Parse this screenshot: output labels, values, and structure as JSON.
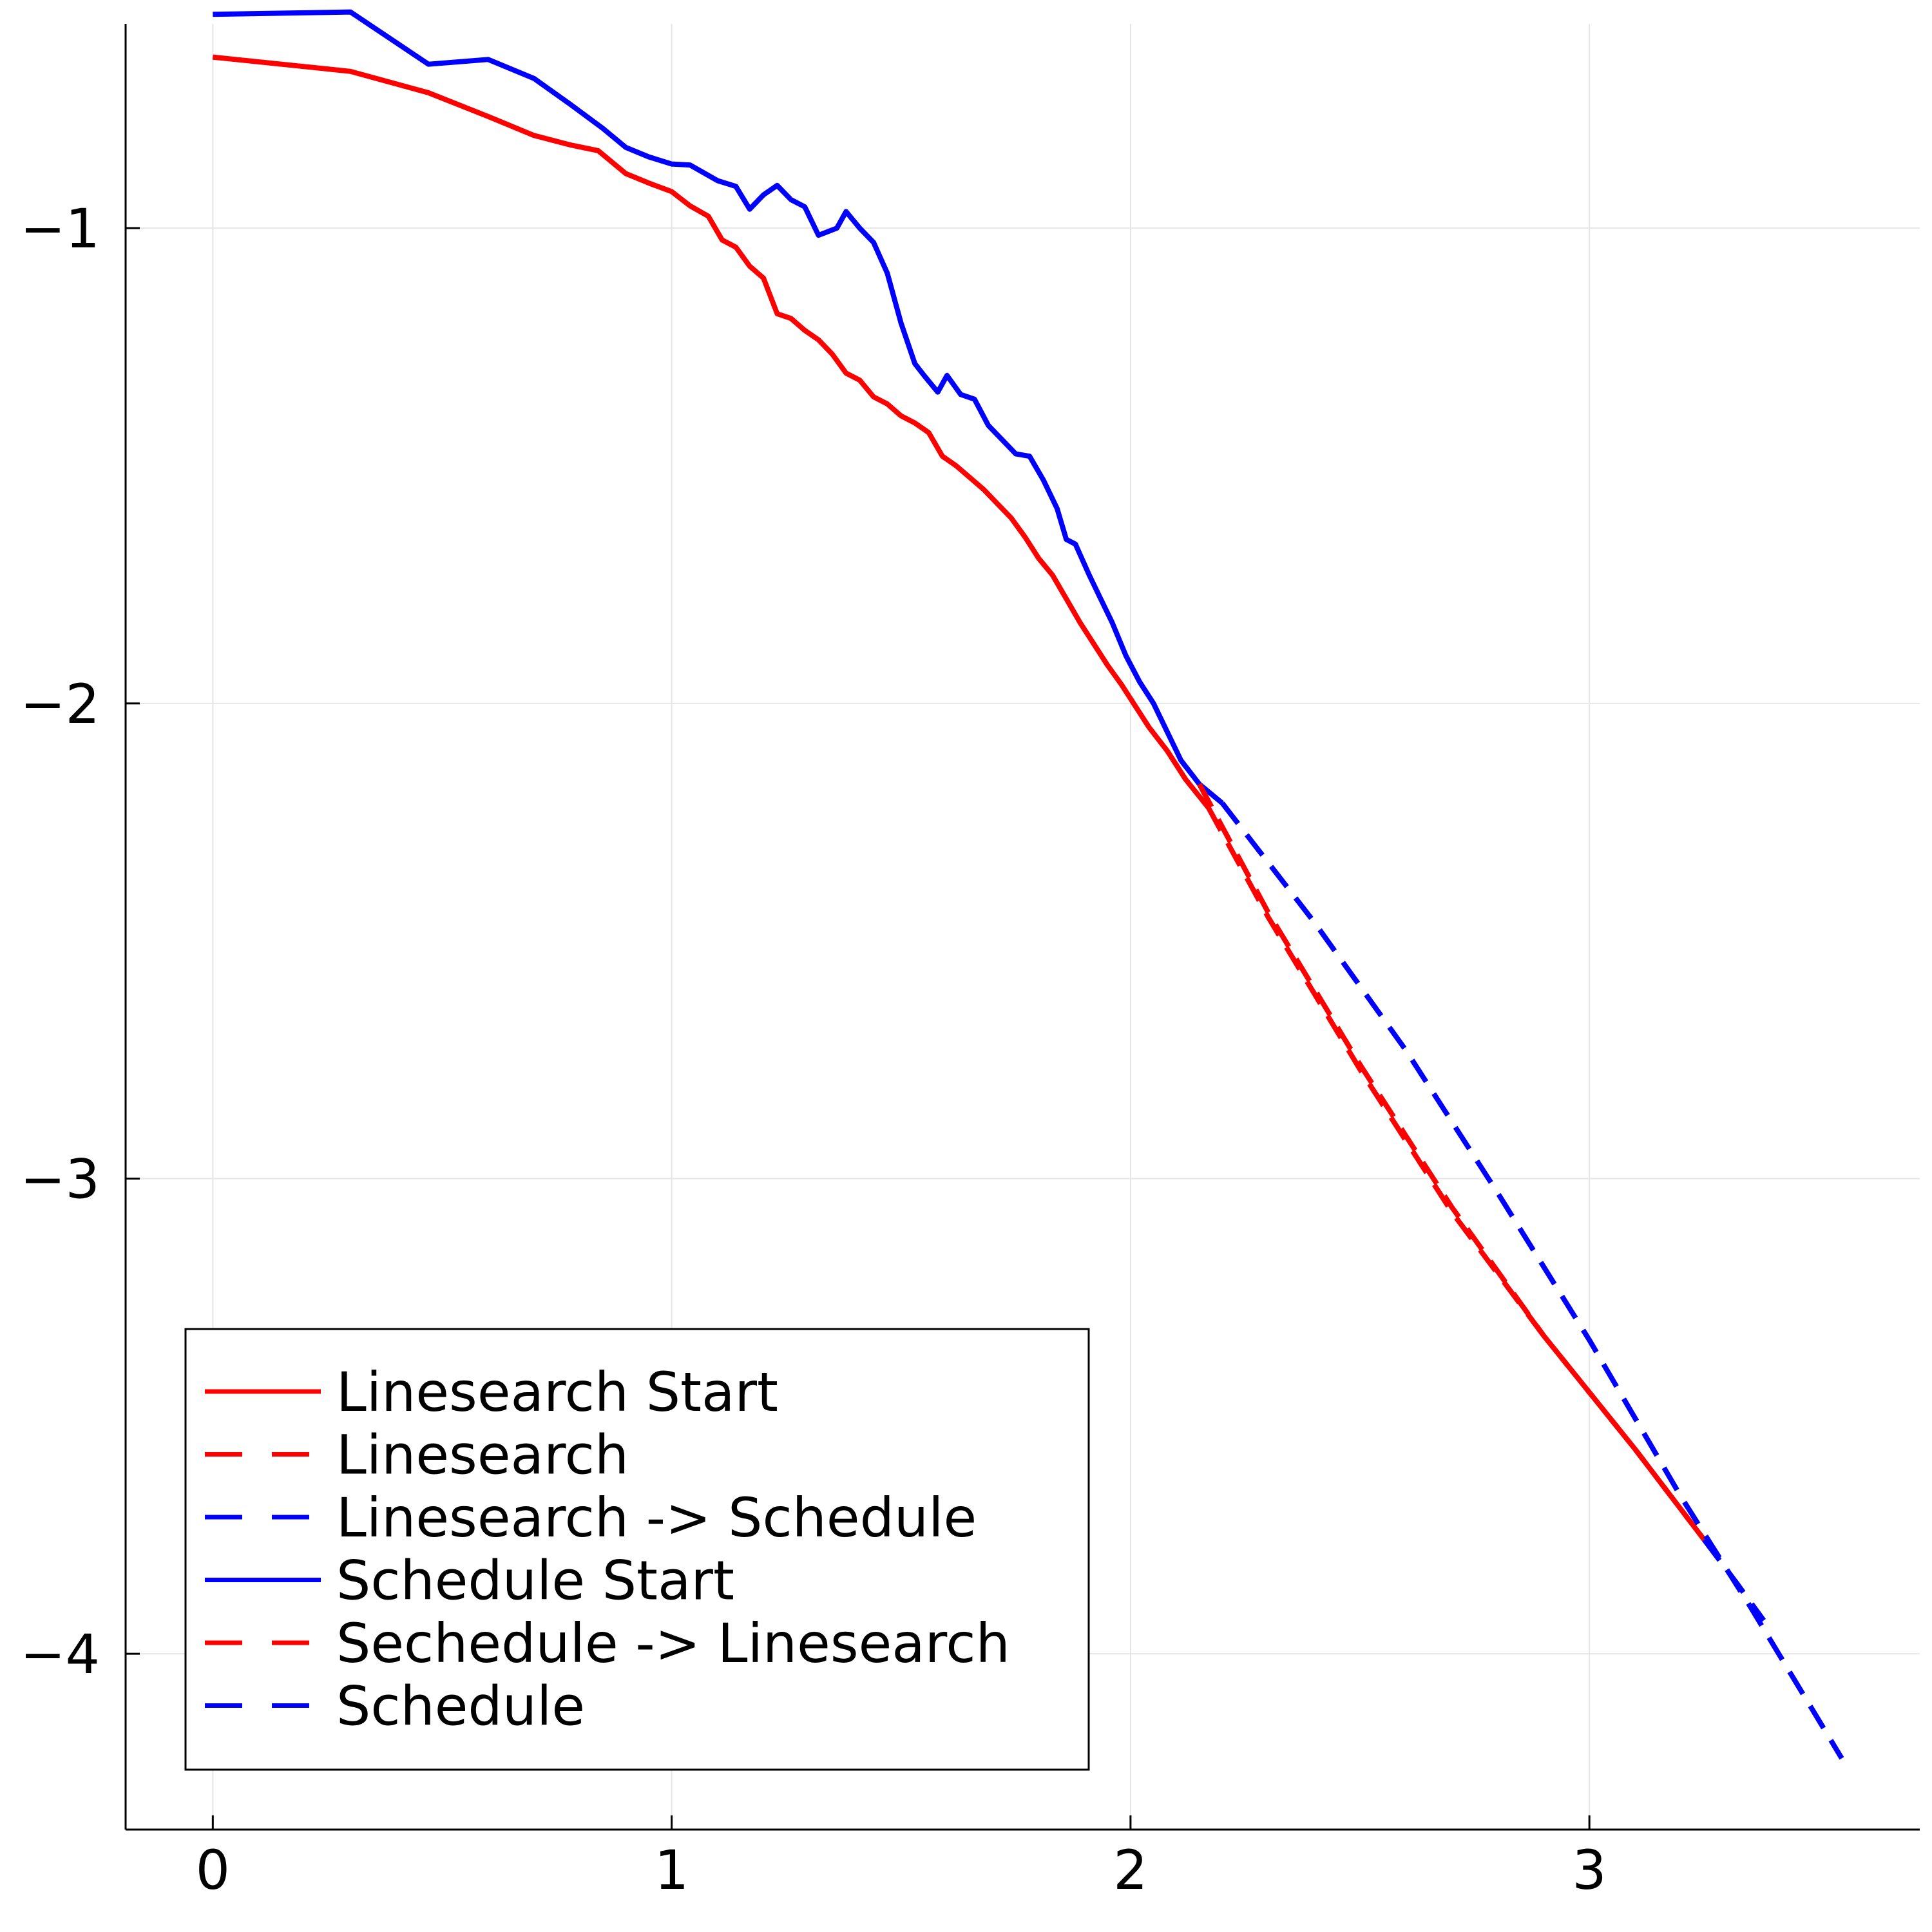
{
  "chart_data": {
    "type": "line",
    "title": "",
    "xlabel": "",
    "ylabel": "",
    "xlim": [
      -0.19,
      3.72
    ],
    "ylim": [
      -4.37,
      -0.57
    ],
    "x_ticks": [
      0,
      1,
      2,
      3
    ],
    "y_ticks": [
      -1,
      -2,
      -3,
      -4
    ],
    "x_tick_labels": [
      "0",
      "1",
      "2",
      "3"
    ],
    "y_tick_labels": [
      "−1",
      "−2",
      "−3",
      "−4"
    ],
    "grid": true,
    "legend_position": "bottom-left",
    "series": [
      {
        "name": "Linesearch Start",
        "color": "#ff0000",
        "dash": "solid",
        "points": [
          [
            0,
            -0.64
          ],
          [
            0.3,
            -0.67
          ],
          [
            0.47,
            -0.715
          ],
          [
            0.6,
            -0.765
          ],
          [
            0.7,
            -0.805
          ],
          [
            0.78,
            -0.825
          ],
          [
            0.84,
            -0.837
          ],
          [
            0.9,
            -0.885
          ],
          [
            0.95,
            -0.905
          ],
          [
            1.0,
            -0.923
          ],
          [
            1.04,
            -0.953
          ],
          [
            1.08,
            -0.975
          ],
          [
            1.11,
            -1.025
          ],
          [
            1.14,
            -1.04
          ],
          [
            1.17,
            -1.08
          ],
          [
            1.2,
            -1.105
          ],
          [
            1.23,
            -1.18
          ],
          [
            1.26,
            -1.19
          ],
          [
            1.29,
            -1.215
          ],
          [
            1.32,
            -1.235
          ],
          [
            1.35,
            -1.265
          ],
          [
            1.38,
            -1.305
          ],
          [
            1.41,
            -1.32
          ],
          [
            1.44,
            -1.355
          ],
          [
            1.47,
            -1.37
          ],
          [
            1.5,
            -1.395
          ],
          [
            1.53,
            -1.41
          ],
          [
            1.56,
            -1.43
          ],
          [
            1.59,
            -1.48
          ],
          [
            1.62,
            -1.5
          ],
          [
            1.65,
            -1.525
          ],
          [
            1.68,
            -1.55
          ],
          [
            1.71,
            -1.58
          ],
          [
            1.74,
            -1.61
          ],
          [
            1.77,
            -1.65
          ],
          [
            1.8,
            -1.695
          ],
          [
            1.83,
            -1.73
          ],
          [
            1.86,
            -1.78
          ],
          [
            1.89,
            -1.83
          ],
          [
            1.92,
            -1.875
          ],
          [
            1.95,
            -1.92
          ],
          [
            1.98,
            -1.96
          ],
          [
            2.0,
            -1.99
          ],
          [
            2.04,
            -2.05
          ],
          [
            2.08,
            -2.1
          ],
          [
            2.12,
            -2.16
          ],
          [
            2.17,
            -2.22
          ]
        ]
      },
      {
        "name": "Linesearch",
        "color": "#ff0000",
        "dash": "dashed",
        "points": [
          [
            2.17,
            -2.22
          ],
          [
            2.3,
            -2.45
          ],
          [
            2.5,
            -2.77
          ],
          [
            2.7,
            -3.07
          ],
          [
            2.9,
            -3.33
          ],
          [
            3.1,
            -3.57
          ],
          [
            3.25,
            -3.76
          ]
        ]
      },
      {
        "name": "Linesearch -> Schedule",
        "color": "#0000ff",
        "dash": "dashed",
        "points": [
          [
            3.25,
            -3.76
          ],
          [
            3.32,
            -3.85
          ],
          [
            3.38,
            -3.93
          ]
        ]
      },
      {
        "name": "Schedule Start",
        "color": "#0000ff",
        "dash": "solid",
        "points": [
          [
            0,
            -0.55
          ],
          [
            0.3,
            -0.545
          ],
          [
            0.47,
            -0.655
          ],
          [
            0.6,
            -0.645
          ],
          [
            0.7,
            -0.685
          ],
          [
            0.78,
            -0.74
          ],
          [
            0.85,
            -0.79
          ],
          [
            0.9,
            -0.83
          ],
          [
            0.95,
            -0.85
          ],
          [
            1.0,
            -0.865
          ],
          [
            1.04,
            -0.867
          ],
          [
            1.1,
            -0.9
          ],
          [
            1.14,
            -0.912
          ],
          [
            1.17,
            -0.96
          ],
          [
            1.2,
            -0.93
          ],
          [
            1.23,
            -0.91
          ],
          [
            1.26,
            -0.94
          ],
          [
            1.29,
            -0.955
          ],
          [
            1.32,
            -1.015
          ],
          [
            1.36,
            -1.0
          ],
          [
            1.38,
            -0.965
          ],
          [
            1.41,
            -1.0
          ],
          [
            1.44,
            -1.03
          ],
          [
            1.47,
            -1.095
          ],
          [
            1.5,
            -1.2
          ],
          [
            1.53,
            -1.285
          ],
          [
            1.55,
            -1.31
          ],
          [
            1.58,
            -1.345
          ],
          [
            1.6,
            -1.31
          ],
          [
            1.63,
            -1.35
          ],
          [
            1.66,
            -1.36
          ],
          [
            1.69,
            -1.415
          ],
          [
            1.72,
            -1.445
          ],
          [
            1.75,
            -1.475
          ],
          [
            1.78,
            -1.48
          ],
          [
            1.81,
            -1.53
          ],
          [
            1.84,
            -1.59
          ],
          [
            1.86,
            -1.655
          ],
          [
            1.88,
            -1.665
          ],
          [
            1.91,
            -1.73
          ],
          [
            1.93,
            -1.77
          ],
          [
            1.96,
            -1.83
          ],
          [
            1.99,
            -1.9
          ],
          [
            2.02,
            -1.955
          ],
          [
            2.05,
            -2.0
          ],
          [
            2.08,
            -2.06
          ],
          [
            2.11,
            -2.12
          ],
          [
            2.15,
            -2.17
          ],
          [
            2.2,
            -2.21
          ]
        ]
      },
      {
        "name": "Sechedule -> Linesearch",
        "color": "#ff0000",
        "dash": "dashed",
        "points": [
          [
            2.15,
            -2.17
          ],
          [
            2.3,
            -2.44
          ],
          [
            2.5,
            -2.76
          ],
          [
            2.7,
            -3.06
          ],
          [
            2.9,
            -3.33
          ],
          [
            3.1,
            -3.57
          ],
          [
            3.25,
            -3.76
          ]
        ]
      },
      {
        "name": "Schedule",
        "color": "#0000ff",
        "dash": "dashed",
        "points": [
          [
            2.2,
            -2.21
          ],
          [
            2.4,
            -2.46
          ],
          [
            2.6,
            -2.73
          ],
          [
            2.8,
            -3.03
          ],
          [
            3.0,
            -3.34
          ],
          [
            3.2,
            -3.67
          ],
          [
            3.35,
            -3.9
          ],
          [
            3.5,
            -4.14
          ],
          [
            3.55,
            -4.22
          ]
        ]
      }
    ],
    "legend": [
      {
        "label": "Linesearch Start",
        "color": "#ff0000",
        "dash": "solid"
      },
      {
        "label": "Linesearch",
        "color": "#ff0000",
        "dash": "dashed"
      },
      {
        "label": "Linesearch -> Schedule",
        "color": "#0000ff",
        "dash": "dashed"
      },
      {
        "label": "Schedule Start",
        "color": "#0000ff",
        "dash": "solid"
      },
      {
        "label": "Sechedule -> Linesearch",
        "color": "#ff0000",
        "dash": "dashed"
      },
      {
        "label": "Schedule",
        "color": "#0000ff",
        "dash": "dashed"
      }
    ]
  }
}
